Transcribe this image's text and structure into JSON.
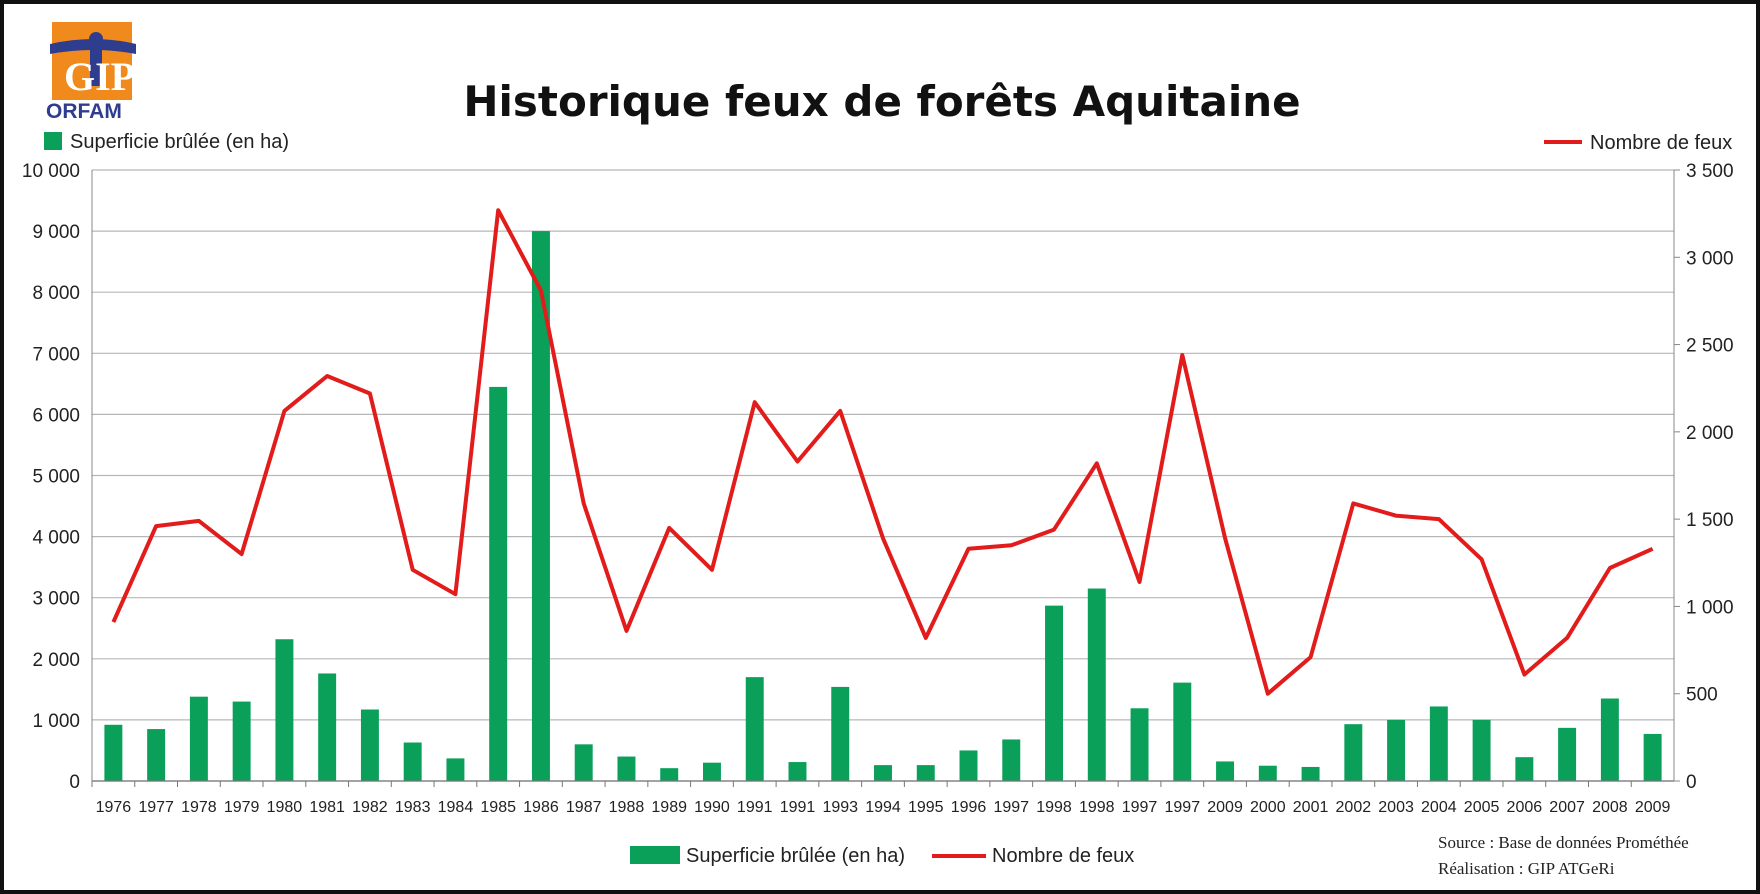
{
  "logo": {
    "name": "ORFAM",
    "mark": "GIP"
  },
  "colors": {
    "bar": "#0aa05a",
    "line": "#e21b1b",
    "grid": "#b7b7b7",
    "logo_orange": "#f08a1c",
    "logo_blue": "#2f3d8f"
  },
  "chart_data": {
    "type": "bar",
    "title": "Historique feux de forêts Aquitaine",
    "categories": [
      "1976",
      "1977",
      "1978",
      "1979",
      "1980",
      "1981",
      "1982",
      "1983",
      "1984",
      "1985",
      "1986",
      "1987",
      "1988",
      "1989",
      "1990",
      "1991",
      "1991",
      "1993",
      "1994",
      "1995",
      "1996",
      "1997",
      "1998",
      "1998",
      "1997",
      "1997",
      "2009",
      "2000",
      "2001",
      "2002",
      "2003",
      "2004",
      "2005",
      "2006",
      "2007",
      "2008",
      "2009"
    ],
    "series": [
      {
        "name": "Superficie brûlée (en ha)",
        "type": "bar",
        "axis": "left",
        "values": [
          920,
          850,
          1380,
          1300,
          2320,
          1760,
          1170,
          630,
          370,
          6450,
          9000,
          600,
          400,
          210,
          300,
          1700,
          310,
          1540,
          260,
          260,
          500,
          680,
          2870,
          3150,
          1190,
          1610,
          320,
          250,
          230,
          930,
          1000,
          1220,
          1000,
          390,
          870,
          1350,
          770
        ]
      },
      {
        "name": "Nombre de feux",
        "type": "line",
        "axis": "right",
        "values": [
          910,
          1460,
          1490,
          1300,
          2120,
          2320,
          2220,
          1210,
          1070,
          3270,
          2810,
          1590,
          860,
          1450,
          1210,
          2170,
          1830,
          2120,
          1390,
          820,
          1330,
          1350,
          1440,
          1820,
          1140,
          2440,
          1390,
          500,
          710,
          1590,
          1520,
          1500,
          1270,
          610,
          820,
          1220,
          1330
        ]
      }
    ],
    "y_left": {
      "ylim": [
        0,
        10000
      ],
      "ticks": [
        "0",
        "1 000",
        "2 000",
        "3 000",
        "4 000",
        "5 000",
        "6 000",
        "7 000",
        "8 000",
        "9 000",
        "10 000"
      ]
    },
    "y_right": {
      "ylim": [
        0,
        3500
      ],
      "ticks": [
        "0",
        "500",
        "1 000",
        "1 500",
        "2 000",
        "2 500",
        "3 000",
        "3 500"
      ]
    },
    "grid": true,
    "legend_placement": "top and bottom",
    "legend": {
      "bar_label": "Superficie brûlée (en ha)",
      "line_label": "Nombre de feux"
    },
    "source": "Source : Base de données Prométhée",
    "credit": "Réalisation : GIP ATGeRi"
  }
}
